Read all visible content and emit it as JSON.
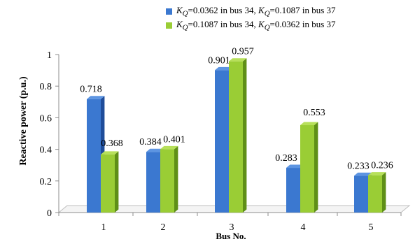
{
  "chart_data": {
    "type": "bar",
    "categories": [
      "1",
      "2",
      "3",
      "4",
      "5"
    ],
    "series": [
      {
        "name_parts": [
          "K",
          "Q",
          "=0.0362 in bus 34, ",
          "K",
          "Q",
          "=0.1087 in bus 37"
        ],
        "values": [
          0.718,
          0.384,
          0.901,
          0.283,
          0.233
        ],
        "labels": [
          "0.718",
          "0.384",
          "0.901",
          "0.283",
          "0.233"
        ],
        "color": "#3b78d0",
        "side_color": "#1f4d9a",
        "top_color": "#5d95e2"
      },
      {
        "name_parts": [
          "K",
          "Q",
          "=0.1087 in bus 34, ",
          "K",
          "Q",
          "=0.0362 in bus 37"
        ],
        "values": [
          0.368,
          0.401,
          0.957,
          0.553,
          0.236
        ],
        "labels": [
          "0.368",
          "0.401",
          "0.957",
          "0.553",
          "0.236"
        ],
        "color": "#9acd35",
        "side_color": "#5f8f17",
        "top_color": "#b7e05a"
      }
    ],
    "ylabel": "Reactive power (p.u.)",
    "xlabel": "Bus No.",
    "ylim": [
      0,
      1
    ],
    "yticks": [
      "0",
      "0.2",
      "0.4",
      "0.6",
      "0.8",
      "1"
    ],
    "grid": false,
    "legend": "top"
  }
}
